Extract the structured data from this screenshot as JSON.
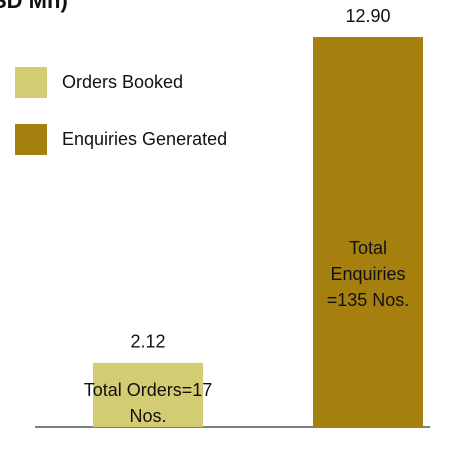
{
  "chart_data": {
    "type": "bar",
    "title": "SD Mn)",
    "series": [
      {
        "name": "Orders Booked",
        "color": "#d4cc73",
        "values": [
          2.12
        ],
        "value_labels": [
          "2.12"
        ]
      },
      {
        "name": "Enquiries Generated",
        "color": "#a6800f",
        "values": [
          12.9
        ],
        "value_labels": [
          "12.90"
        ]
      }
    ],
    "annotations": [
      [
        "Total Orders=17",
        "Nos."
      ],
      [
        "Total",
        "Enquiries",
        "=135 Nos."
      ]
    ]
  }
}
